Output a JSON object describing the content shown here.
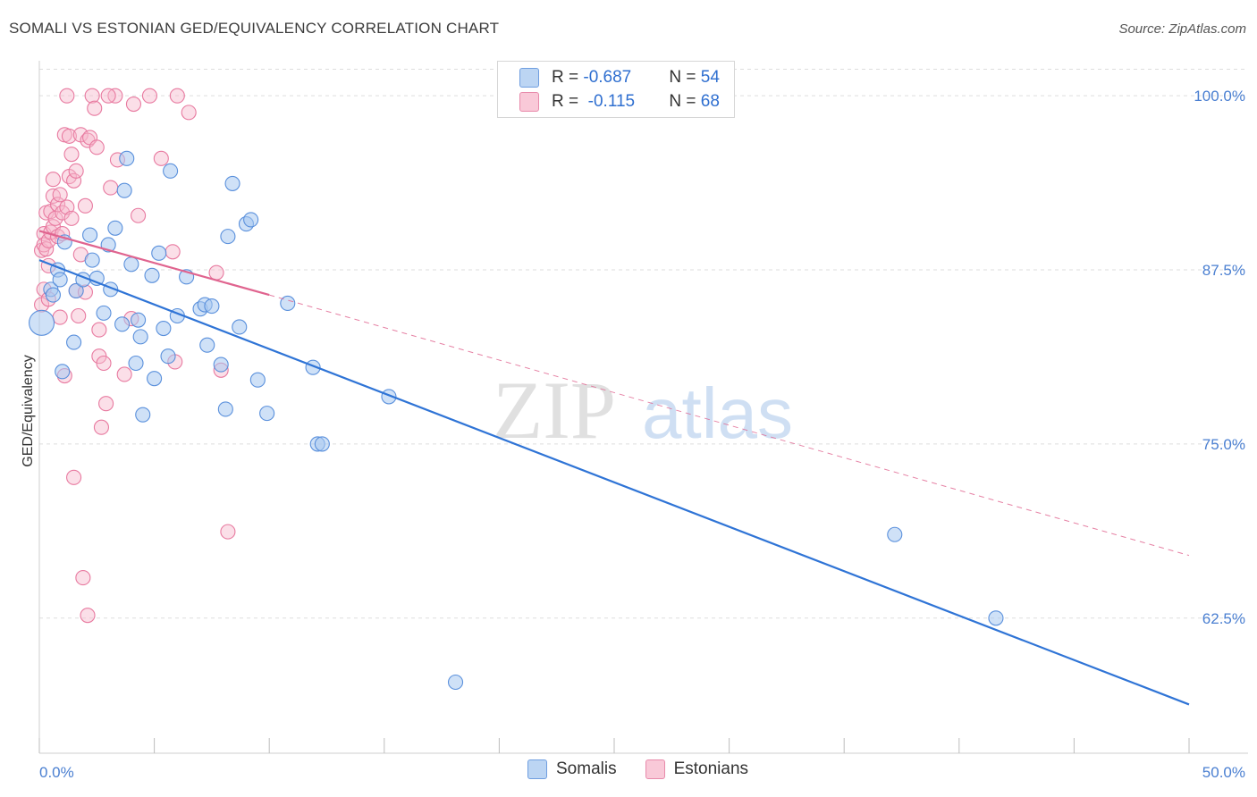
{
  "title": "SOMALI VS ESTONIAN GED/EQUIVALENCY CORRELATION CHART",
  "source": "Source: ZipAtlas.com",
  "watermark": {
    "zip": "ZIP",
    "atlas": "atlas"
  },
  "legend": {
    "rows": [
      {
        "r_label": "R = ",
        "r_value": "-0.687",
        "n_label": "N = ",
        "n_value": "54"
      },
      {
        "r_label": "R = ",
        "r_value": " -0.115",
        "n_label": "N = ",
        "n_value": "68"
      }
    ]
  },
  "bottom_legend": {
    "somalis": "Somalis",
    "estonians": "Estonians"
  },
  "colors": {
    "blue_fill": "#a8c8f0",
    "blue_stroke": "#5a90dc",
    "blue_line": "#2f74d6",
    "pink_fill": "#f7b8cc",
    "pink_stroke": "#e87aa0",
    "pink_line": "#e0648f",
    "tick": "#4a7fd1",
    "grid": "#dddddd"
  },
  "chart_data": {
    "type": "scatter",
    "title": "SOMALI VS ESTONIAN GED/EQUIVALENCY CORRELATION CHART",
    "xlabel": "",
    "ylabel": "GED/Equivalency",
    "xlim": [
      0,
      50
    ],
    "ylim": [
      52.8,
      102
    ],
    "x_tick_labels": [
      "0.0%",
      "50.0%"
    ],
    "y_ticks": [
      62.5,
      75.0,
      87.5,
      100.0
    ],
    "y_tick_labels": [
      "62.5%",
      "75.0%",
      "87.5%",
      "100.0%"
    ],
    "series": [
      {
        "name": "Somalis",
        "r": -0.687,
        "n": 54,
        "trend": {
          "x": [
            0,
            50
          ],
          "y": [
            88.2,
            56.3
          ]
        },
        "points": [
          [
            0.1,
            83.7
          ],
          [
            0.5,
            86.1
          ],
          [
            0.6,
            85.7
          ],
          [
            0.8,
            87.5
          ],
          [
            0.9,
            86.8
          ],
          [
            1.0,
            80.2
          ],
          [
            1.1,
            89.5
          ],
          [
            1.5,
            82.3
          ],
          [
            1.6,
            86.0
          ],
          [
            1.9,
            86.8
          ],
          [
            2.2,
            90.0
          ],
          [
            2.3,
            88.2
          ],
          [
            2.5,
            86.9
          ],
          [
            2.8,
            84.4
          ],
          [
            3.0,
            89.3
          ],
          [
            3.1,
            86.1
          ],
          [
            3.3,
            90.5
          ],
          [
            3.6,
            83.6
          ],
          [
            3.7,
            93.2
          ],
          [
            3.8,
            95.5
          ],
          [
            4.0,
            87.9
          ],
          [
            4.2,
            80.8
          ],
          [
            4.3,
            83.9
          ],
          [
            4.5,
            77.1
          ],
          [
            4.9,
            87.1
          ],
          [
            5.0,
            79.7
          ],
          [
            5.2,
            88.7
          ],
          [
            5.4,
            83.3
          ],
          [
            5.6,
            81.3
          ],
          [
            5.7,
            94.6
          ],
          [
            6.0,
            84.2
          ],
          [
            6.4,
            87.0
          ],
          [
            7.0,
            84.7
          ],
          [
            7.2,
            85.0
          ],
          [
            7.3,
            82.1
          ],
          [
            7.5,
            84.9
          ],
          [
            7.9,
            80.7
          ],
          [
            8.1,
            77.5
          ],
          [
            8.2,
            89.9
          ],
          [
            8.4,
            93.7
          ],
          [
            8.7,
            83.4
          ],
          [
            9.0,
            90.8
          ],
          [
            9.2,
            91.1
          ],
          [
            9.5,
            79.6
          ],
          [
            9.9,
            77.2
          ],
          [
            10.8,
            85.1
          ],
          [
            11.9,
            80.5
          ],
          [
            12.1,
            75.0
          ],
          [
            12.3,
            75.0
          ],
          [
            15.2,
            78.4
          ],
          [
            18.1,
            57.9
          ],
          [
            37.2,
            68.5
          ],
          [
            41.6,
            62.5
          ],
          [
            4.4,
            82.7
          ]
        ]
      },
      {
        "name": "Estonians",
        "r": -0.115,
        "n": 68,
        "trend_solid": {
          "x": [
            0,
            10
          ],
          "y": [
            90.3,
            85.7
          ]
        },
        "trend_dashed": {
          "x": [
            10,
            50
          ],
          "y": [
            85.7,
            67.0
          ]
        },
        "points": [
          [
            0.1,
            88.9
          ],
          [
            0.1,
            85.0
          ],
          [
            0.2,
            90.1
          ],
          [
            0.2,
            89.3
          ],
          [
            0.2,
            86.1
          ],
          [
            0.3,
            91.6
          ],
          [
            0.3,
            89.0
          ],
          [
            0.4,
            89.6
          ],
          [
            0.4,
            85.4
          ],
          [
            0.5,
            91.7
          ],
          [
            0.5,
            90.2
          ],
          [
            0.6,
            92.8
          ],
          [
            0.6,
            90.6
          ],
          [
            0.7,
            91.2
          ],
          [
            0.8,
            92.2
          ],
          [
            0.8,
            89.9
          ],
          [
            0.9,
            84.1
          ],
          [
            0.9,
            92.9
          ],
          [
            1.0,
            91.6
          ],
          [
            1.0,
            90.1
          ],
          [
            1.1,
            97.2
          ],
          [
            1.1,
            79.9
          ],
          [
            1.2,
            92.0
          ],
          [
            1.2,
            100.0
          ],
          [
            1.3,
            94.2
          ],
          [
            1.3,
            97.1
          ],
          [
            1.4,
            91.2
          ],
          [
            1.4,
            95.8
          ],
          [
            1.5,
            72.6
          ],
          [
            1.5,
            93.9
          ],
          [
            1.6,
            94.6
          ],
          [
            1.6,
            86.0
          ],
          [
            1.7,
            84.2
          ],
          [
            1.8,
            97.2
          ],
          [
            1.9,
            65.4
          ],
          [
            2.0,
            92.1
          ],
          [
            2.0,
            85.9
          ],
          [
            2.1,
            96.8
          ],
          [
            2.1,
            62.7
          ],
          [
            2.2,
            97.0
          ],
          [
            2.3,
            100.0
          ],
          [
            2.4,
            99.1
          ],
          [
            2.5,
            96.3
          ],
          [
            2.6,
            81.3
          ],
          [
            2.6,
            83.2
          ],
          [
            2.7,
            76.2
          ],
          [
            2.8,
            80.8
          ],
          [
            2.9,
            77.9
          ],
          [
            3.1,
            93.4
          ],
          [
            3.3,
            100.0
          ],
          [
            3.4,
            95.4
          ],
          [
            3.7,
            80.0
          ],
          [
            4.0,
            84.0
          ],
          [
            4.1,
            99.4
          ],
          [
            4.3,
            91.4
          ],
          [
            4.8,
            100.0
          ],
          [
            5.3,
            95.5
          ],
          [
            5.8,
            88.8
          ],
          [
            5.9,
            80.9
          ],
          [
            6.0,
            100.0
          ],
          [
            6.5,
            98.8
          ],
          [
            7.7,
            87.3
          ],
          [
            7.9,
            80.3
          ],
          [
            8.2,
            68.7
          ],
          [
            3.0,
            100.0
          ],
          [
            0.6,
            94.0
          ],
          [
            1.8,
            88.6
          ],
          [
            0.4,
            87.8
          ]
        ]
      }
    ]
  }
}
